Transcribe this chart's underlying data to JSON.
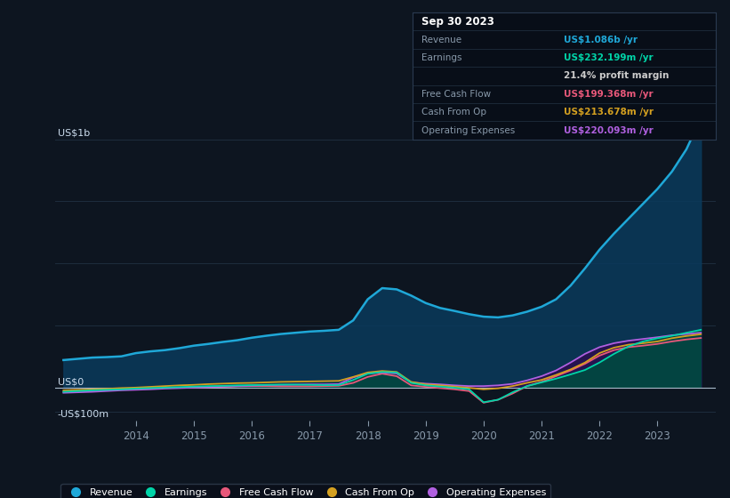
{
  "bg_color": "#0d1520",
  "plot_bg": "#0d1520",
  "grid_color": "#1e2d3d",
  "revenue_color": "#1fa8d8",
  "earnings_color": "#00d4a8",
  "free_cash_flow_color": "#e8587a",
  "cash_from_op_color": "#d4a020",
  "operating_expenses_color": "#b060e0",
  "revenue_fill_color": "#0a3a5c",
  "earnings_fill_color": "#004a40",
  "op_exp_fill_color": "#2a1050",
  "years": [
    2012.75,
    2013.0,
    2013.25,
    2013.5,
    2013.75,
    2014.0,
    2014.25,
    2014.5,
    2014.75,
    2015.0,
    2015.25,
    2015.5,
    2015.75,
    2016.0,
    2016.25,
    2016.5,
    2016.75,
    2017.0,
    2017.25,
    2017.5,
    2017.75,
    2018.0,
    2018.25,
    2018.5,
    2018.75,
    2019.0,
    2019.25,
    2019.5,
    2019.75,
    2020.0,
    2020.25,
    2020.5,
    2020.75,
    2021.0,
    2021.25,
    2021.5,
    2021.75,
    2022.0,
    2022.25,
    2022.5,
    2022.75,
    2023.0,
    2023.25,
    2023.5,
    2023.75
  ],
  "revenue": [
    110,
    115,
    120,
    122,
    125,
    138,
    145,
    150,
    158,
    168,
    175,
    183,
    190,
    200,
    208,
    215,
    220,
    225,
    228,
    232,
    270,
    355,
    400,
    395,
    370,
    340,
    320,
    308,
    295,
    285,
    282,
    290,
    305,
    325,
    355,
    410,
    480,
    555,
    620,
    680,
    740,
    800,
    870,
    960,
    1086
  ],
  "earnings": [
    -18,
    -15,
    -12,
    -10,
    -8,
    -5,
    -3,
    -1,
    1,
    3,
    5,
    6,
    8,
    9,
    10,
    11,
    11,
    10,
    9,
    9,
    30,
    55,
    62,
    60,
    18,
    8,
    3,
    -2,
    -8,
    -60,
    -50,
    -20,
    5,
    20,
    35,
    52,
    70,
    100,
    135,
    165,
    185,
    198,
    208,
    220,
    232
  ],
  "free_cash_flow": [
    -18,
    -15,
    -12,
    -10,
    -8,
    -6,
    -4,
    -2,
    -1,
    0,
    1,
    2,
    4,
    5,
    5,
    4,
    4,
    4,
    5,
    6,
    18,
    42,
    55,
    45,
    8,
    2,
    -3,
    -8,
    -15,
    -62,
    -50,
    -25,
    5,
    22,
    45,
    68,
    95,
    128,
    150,
    162,
    168,
    175,
    185,
    193,
    199
  ],
  "cash_from_op": [
    -12,
    -10,
    -8,
    -6,
    -3,
    -1,
    2,
    5,
    8,
    10,
    13,
    15,
    17,
    18,
    20,
    22,
    23,
    24,
    25,
    26,
    42,
    60,
    66,
    62,
    22,
    12,
    8,
    3,
    -2,
    -8,
    -4,
    5,
    18,
    30,
    50,
    72,
    100,
    138,
    160,
    172,
    178,
    185,
    198,
    207,
    214
  ],
  "operating_expenses": [
    -22,
    -20,
    -18,
    -15,
    -12,
    -10,
    -8,
    -5,
    -3,
    -1,
    1,
    3,
    5,
    7,
    9,
    10,
    11,
    12,
    12,
    13,
    40,
    56,
    60,
    56,
    20,
    15,
    12,
    8,
    5,
    5,
    8,
    14,
    28,
    45,
    68,
    100,
    135,
    162,
    178,
    188,
    195,
    202,
    210,
    215,
    220
  ],
  "xlim": [
    2012.6,
    2024.0
  ],
  "ylim": [
    -135,
    1110
  ],
  "xticks": [
    2014,
    2015,
    2016,
    2017,
    2018,
    2019,
    2020,
    2021,
    2022,
    2023
  ],
  "legend_items": [
    {
      "label": "Revenue",
      "color": "#1fa8d8"
    },
    {
      "label": "Earnings",
      "color": "#00d4a8"
    },
    {
      "label": "Free Cash Flow",
      "color": "#e8587a"
    },
    {
      "label": "Cash From Op",
      "color": "#d4a020"
    },
    {
      "label": "Operating Expenses",
      "color": "#b060e0"
    }
  ],
  "tooltip": {
    "date": "Sep 30 2023",
    "rows": [
      {
        "label": "Revenue",
        "value": "US$1.086b /yr",
        "label_color": "#8899aa",
        "value_color": "#1fa8d8"
      },
      {
        "label": "Earnings",
        "value": "US$232.199m /yr",
        "label_color": "#8899aa",
        "value_color": "#00d4a8"
      },
      {
        "label": "",
        "value": "21.4% profit margin",
        "label_color": "#8899aa",
        "value_color": "#cccccc"
      },
      {
        "label": "Free Cash Flow",
        "value": "US$199.368m /yr",
        "label_color": "#8899aa",
        "value_color": "#e8587a"
      },
      {
        "label": "Cash From Op",
        "value": "US$213.678m /yr",
        "label_color": "#8899aa",
        "value_color": "#d4a020"
      },
      {
        "label": "Operating Expenses",
        "value": "US$220.093m /yr",
        "label_color": "#8899aa",
        "value_color": "#b060e0"
      }
    ]
  }
}
